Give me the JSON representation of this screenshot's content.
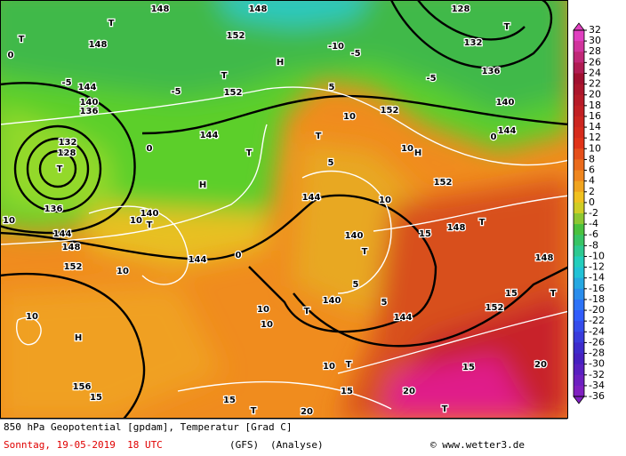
{
  "map_labels": [
    "H",
    "H",
    "H",
    "H",
    "T",
    "T",
    "T",
    "T",
    "T",
    "T",
    "T",
    "T",
    "T",
    "T",
    "T",
    "T",
    "T",
    "T",
    "T",
    144,
    144,
    144,
    144,
    144,
    144,
    144,
    140,
    140,
    140,
    140,
    140,
    148,
    148,
    148,
    148,
    148,
    148,
    152,
    152,
    152,
    152,
    152,
    152,
    136,
    136,
    136,
    128,
    128,
    132,
    132,
    156,
    0,
    0,
    0,
    0,
    -5,
    -5,
    -5,
    -5,
    -10,
    5,
    5,
    5,
    5,
    10,
    10,
    10,
    10,
    10,
    10,
    10,
    10,
    10,
    10,
    15,
    15,
    15,
    15,
    15,
    15,
    20,
    20,
    20
  ],
  "colorbar": {
    "ticks": [
      32,
      30,
      28,
      26,
      24,
      22,
      20,
      18,
      16,
      14,
      12,
      10,
      8,
      6,
      4,
      2,
      0,
      -2,
      -4,
      -6,
      -8,
      -10,
      -12,
      -14,
      -16,
      -18,
      -20,
      -22,
      -24,
      -26,
      -28,
      -30,
      -32,
      -34,
      -36
    ]
  },
  "footer": {
    "title": "850 hPa Geopotential [gpdam], Temperatur [Grad C]",
    "date": "Sonntag, 19-05-2019  18 UTC",
    "model": "(GFS)",
    "run": "(Analyse)",
    "source": "© www.wetter3.de"
  }
}
